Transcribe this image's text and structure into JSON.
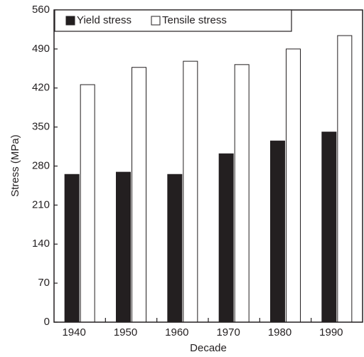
{
  "chart_data": {
    "type": "bar",
    "categories": [
      "1940",
      "1950",
      "1960",
      "1970",
      "1980",
      "1990"
    ],
    "series": [
      {
        "name": "Yield stress",
        "color": "#231f20",
        "values": [
          265,
          269,
          265,
          302,
          325,
          341
        ]
      },
      {
        "name": "Tensile stress",
        "color": "#ffffff",
        "values": [
          426,
          457,
          468,
          462,
          490,
          514
        ]
      }
    ],
    "x_label": "Decade",
    "y_label": "Stress (MPa)",
    "ylim": [
      0,
      560
    ],
    "yticks": [
      0,
      70,
      140,
      210,
      280,
      350,
      420,
      490,
      560
    ],
    "legend": "top-left"
  }
}
